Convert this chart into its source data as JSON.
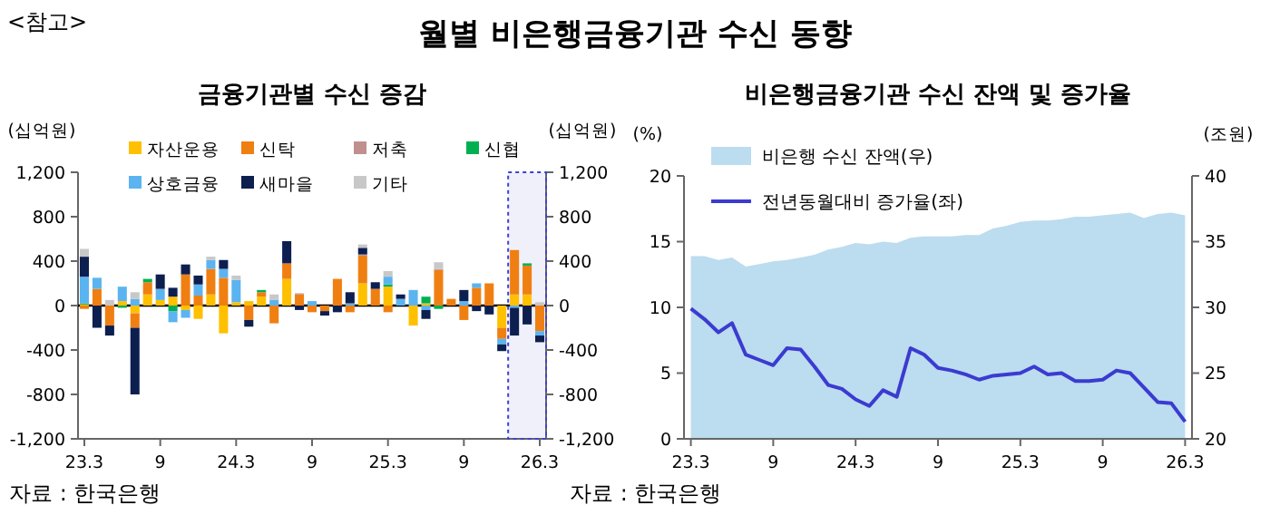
{
  "chart_data": [
    {
      "type": "bar",
      "stacked": true,
      "title": "월별 비은행금융기관 수신 동향",
      "subtitle": "금융기관별 수신 증감",
      "ylabel": "(십억원)",
      "y2label": "(십억원)",
      "annotations": [
        "<참고>",
        "자료 : 한국은행"
      ],
      "categories": [
        "23.3",
        null,
        null,
        null,
        null,
        null,
        "9",
        null,
        null,
        null,
        null,
        null,
        "24.3",
        null,
        null,
        null,
        null,
        null,
        "9",
        null,
        null,
        null,
        null,
        null,
        "25.3",
        null,
        null,
        null,
        null,
        null,
        "9",
        null,
        null,
        null,
        null,
        null,
        "26.3"
      ],
      "ylim": [
        -1200,
        1200
      ],
      "yticks": [
        {
          "value": -1200,
          "label": "-1,200"
        },
        -800,
        -400,
        0,
        400,
        800,
        {
          "value": 1200,
          "label": "1,200"
        }
      ],
      "y2lim": [
        -1200,
        1200
      ],
      "y2ticks": [
        {
          "value": -1200,
          "label": "-1,200"
        },
        -800,
        -400,
        0,
        400,
        800,
        {
          "value": 1200,
          "label": "1,200"
        }
      ],
      "legend": "top",
      "series": [
        {
          "name": "자산운용",
          "color": "#ffc000",
          "values": [
            10,
            0,
            0,
            40,
            -70,
            100,
            50,
            80,
            -40,
            -120,
            100,
            -250,
            30,
            40,
            80,
            0,
            240,
            0,
            0,
            0,
            0,
            0,
            200,
            0,
            170,
            0,
            -180,
            20,
            0,
            0,
            0,
            0,
            0,
            -200,
            100,
            100,
            0
          ]
        },
        {
          "name": "신탁",
          "color": "#f07f12",
          "values": [
            -30,
            150,
            -180,
            0,
            -130,
            110,
            0,
            0,
            280,
            90,
            230,
            250,
            0,
            -130,
            40,
            -160,
            140,
            100,
            -60,
            -50,
            240,
            -60,
            250,
            150,
            -60,
            0,
            0,
            0,
            320,
            60,
            -130,
            160,
            200,
            -100,
            400,
            260,
            -230
          ]
        },
        {
          "name": "저축",
          "color": "#c0908f",
          "values": [
            0,
            0,
            0,
            0,
            0,
            0,
            0,
            0,
            0,
            0,
            0,
            0,
            0,
            0,
            0,
            0,
            0,
            10,
            0,
            0,
            0,
            0,
            10,
            0,
            0,
            0,
            0,
            0,
            10,
            0,
            0,
            0,
            0,
            0,
            0,
            0,
            0
          ]
        },
        {
          "name": "신협",
          "color": "#00b050",
          "values": [
            10,
            0,
            0,
            -20,
            0,
            30,
            0,
            -50,
            0,
            0,
            0,
            0,
            0,
            0,
            20,
            0,
            0,
            0,
            0,
            0,
            0,
            0,
            0,
            0,
            20,
            0,
            0,
            60,
            -30,
            0,
            0,
            0,
            0,
            0,
            0,
            20,
            0
          ]
        },
        {
          "name": "상호금융",
          "color": "#5bb4f0",
          "values": [
            240,
            100,
            0,
            130,
            60,
            0,
            100,
            -100,
            -70,
            100,
            80,
            80,
            200,
            0,
            0,
            50,
            0,
            0,
            40,
            0,
            0,
            20,
            0,
            0,
            70,
            60,
            140,
            -40,
            0,
            0,
            40,
            40,
            0,
            -50,
            -20,
            0,
            -40
          ]
        },
        {
          "name": "새마을",
          "color": "#0d1f4f",
          "values": [
            180,
            -200,
            -90,
            0,
            -600,
            0,
            130,
            80,
            90,
            80,
            0,
            80,
            0,
            -60,
            0,
            0,
            200,
            -40,
            0,
            -40,
            -60,
            100,
            60,
            60,
            0,
            40,
            0,
            -80,
            0,
            0,
            100,
            -50,
            -80,
            -60,
            -250,
            -170,
            -60
          ]
        },
        {
          "name": "기타",
          "color": "#c8c8c8",
          "values": [
            70,
            0,
            50,
            0,
            60,
            0,
            0,
            0,
            0,
            0,
            30,
            0,
            40,
            0,
            null,
            50,
            0,
            null,
            0,
            0,
            0,
            0,
            30,
            0,
            50,
            0,
            0,
            0,
            60,
            0,
            null,
            0,
            0,
            0,
            0,
            0,
            30
          ]
        }
      ]
    },
    {
      "type": "line",
      "title": "비은행금융기관 수신 잔액 및 증가율",
      "ylabel": "(%)",
      "y2label": "(조원)",
      "annotations": [
        "자료 : 한국은행"
      ],
      "categories": [
        "23.3",
        null,
        null,
        null,
        null,
        null,
        "9",
        null,
        null,
        null,
        null,
        null,
        "24.3",
        null,
        null,
        null,
        null,
        null,
        "9",
        null,
        null,
        null,
        null,
        null,
        "25.3",
        null,
        null,
        null,
        null,
        null,
        "9",
        null,
        null,
        null,
        null,
        null,
        "26.3"
      ],
      "ylim": [
        0,
        20
      ],
      "yticks": [
        0,
        5,
        10,
        15,
        20
      ],
      "y2lim": [
        20,
        40
      ],
      "y2ticks": [
        20,
        25,
        30,
        35,
        40
      ],
      "legend": "top left",
      "line_style": "solid",
      "series": [
        {
          "name": "비은행 수신 잔액(우)",
          "type": "area",
          "axis": "y2",
          "color": "#bcdcef",
          "values": [
            33.9,
            33.9,
            33.6,
            33.8,
            33.1,
            33.3,
            33.5,
            33.6,
            33.8,
            34.0,
            34.4,
            34.6,
            34.9,
            34.8,
            35.0,
            34.9,
            35.3,
            35.4,
            35.4,
            35.4,
            35.5,
            35.5,
            36.0,
            36.2,
            36.5,
            36.6,
            36.6,
            36.7,
            36.9,
            36.9,
            37.0,
            37.1,
            37.2,
            36.8,
            37.1,
            37.2,
            37.0
          ]
        },
        {
          "name": "전년동월대비 증가율(좌)",
          "type": "line",
          "color": "#3b3bd0",
          "values": [
            9.9,
            9.1,
            8.1,
            8.8,
            6.4,
            6.0,
            5.6,
            6.9,
            6.8,
            5.5,
            4.1,
            3.8,
            3.0,
            2.5,
            3.7,
            3.2,
            6.9,
            6.4,
            5.4,
            5.2,
            4.9,
            4.5,
            4.8,
            4.9,
            5.0,
            5.5,
            4.9,
            5.0,
            4.4,
            4.4,
            4.5,
            5.2,
            5.0,
            3.9,
            2.8,
            2.7,
            1.3
          ]
        }
      ]
    }
  ]
}
